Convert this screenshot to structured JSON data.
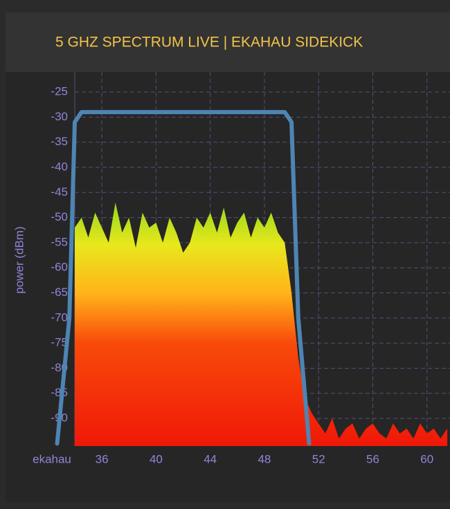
{
  "chart_data": {
    "type": "spectrum",
    "title": "5 GHZ SPECTRUM LIVE | EKAHAU SIDEKICK",
    "y_label": "power (dBm)",
    "x_axis_name": "ekahau",
    "xlim": [
      34,
      61.7
    ],
    "ylim": [
      -95.5,
      -21
    ],
    "xticks": [
      36,
      40,
      44,
      48,
      52,
      56,
      60
    ],
    "yticks": [
      -25,
      -30,
      -35,
      -40,
      -45,
      -50,
      -55,
      -60,
      -65,
      -70,
      -75,
      -80,
      -85,
      -90
    ],
    "grid": true,
    "series": [
      {
        "kind": "area",
        "colors": [
          "#f01808",
          "#f84a0a",
          "#ffb31a",
          "#e8e81c",
          "#8fd61e"
        ],
        "x": [
          34,
          34.5,
          35,
          35.5,
          36,
          36.5,
          37,
          37.5,
          38,
          38.5,
          39,
          39.5,
          40,
          40.5,
          41,
          41.5,
          42,
          42.5,
          43,
          43.5,
          44,
          44.5,
          45,
          45.5,
          46,
          46.5,
          47,
          47.5,
          48,
          48.5,
          49,
          49.5,
          50,
          50.5,
          51,
          51.5,
          52,
          52.5,
          53,
          53.5,
          54,
          54.5,
          55,
          55.5,
          56,
          56.5,
          57,
          57.5,
          58,
          58.5,
          59,
          59.5,
          60,
          60.5,
          61,
          61.5
        ],
        "values": [
          -52,
          -50,
          -54,
          -49,
          -52,
          -55,
          -47,
          -53,
          -50,
          -56,
          -49,
          -52,
          -51,
          -55,
          -50,
          -53,
          -57,
          -55,
          -50,
          -52,
          -49,
          -53,
          -48,
          -54,
          -51,
          -49,
          -54,
          -50,
          -52,
          -49,
          -53,
          -55,
          -65,
          -78,
          -86,
          -89,
          -91,
          -93,
          -90,
          -94,
          -92,
          -91,
          -94,
          -92,
          -91,
          -93,
          -94,
          -91,
          -93,
          -92,
          -94,
          -91,
          -93,
          -92,
          -94,
          -92
        ]
      },
      {
        "kind": "line",
        "color": "#4d85b3",
        "x": [
          32.7,
          33.6,
          34.0,
          34.5,
          49.5,
          50.0,
          50.5,
          51.3
        ],
        "values": [
          -95,
          -70,
          -31,
          -29,
          -29,
          -31,
          -70,
          -95
        ]
      }
    ]
  }
}
